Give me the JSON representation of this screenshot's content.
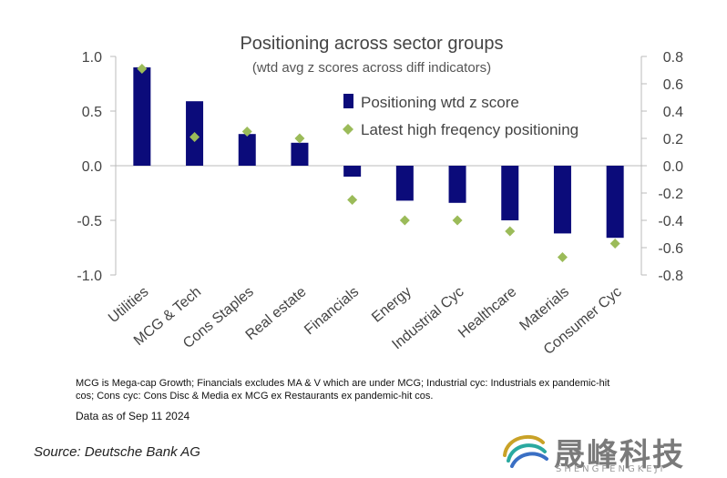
{
  "chart_data": {
    "type": "bar",
    "title": "Positioning across sector groups",
    "subtitle": "(wtd avg z scores across diff indicators)",
    "categories": [
      "Utilities",
      "MCG & Tech",
      "Cons Staples",
      "Real estate",
      "Financials",
      "Energy",
      "Industrial Cyc",
      "Healthcare",
      "Materials",
      "Consumer Cyc"
    ],
    "series": [
      {
        "name": "Positioning wtd z score",
        "kind": "bar",
        "axis": "left",
        "color": "#0b0b7a",
        "values": [
          0.9,
          0.59,
          0.29,
          0.21,
          -0.1,
          -0.32,
          -0.34,
          -0.5,
          -0.62,
          -0.66
        ]
      },
      {
        "name": "Latest high freqency positioning",
        "kind": "marker",
        "axis": "right",
        "color": "#9bbb59",
        "values": [
          0.71,
          0.21,
          0.25,
          0.2,
          -0.25,
          -0.4,
          -0.4,
          -0.48,
          -0.67,
          -0.57
        ]
      }
    ],
    "y_left": {
      "lim": [
        -1.0,
        1.0
      ],
      "ticks": [
        "1.0",
        "0.5",
        "0.0",
        "-0.5",
        "-1.0"
      ],
      "tick_values": [
        1.0,
        0.5,
        0.0,
        -0.5,
        -1.0
      ]
    },
    "y_right": {
      "lim": [
        -0.8,
        0.8
      ],
      "ticks": [
        "0.8",
        "0.6",
        "0.4",
        "0.2",
        "0.0",
        "-0.2",
        "-0.4",
        "-0.6",
        "-0.8"
      ],
      "tick_values": [
        0.8,
        0.6,
        0.4,
        0.2,
        0.0,
        -0.2,
        -0.4,
        -0.6,
        -0.8
      ]
    },
    "legend": "top-right",
    "grid": false
  },
  "footnote_line1": "MCG is Mega-cap Growth; Financials excludes MA & V which are under MCG;  Industrial cyc: Industrials ex pandemic-hit",
  "footnote_line2": "cos; Cons cyc: Cons Disc & Media ex MCG ex Restaurants ex pandemic-hit cos.",
  "data_date": "Data as of Sep 11 2024",
  "source": "Source: Deutsche Bank AG",
  "watermark": {
    "cn": "晟峰科技",
    "en": "SHENGFENGKEJI"
  }
}
